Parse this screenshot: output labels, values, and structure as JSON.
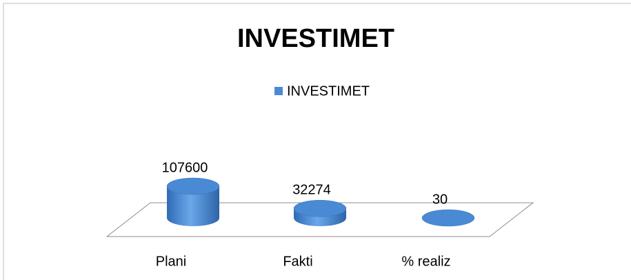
{
  "chart_data": {
    "type": "bar3d",
    "title": "INVESTIMET",
    "categories": [
      "Plani",
      "Fakti",
      "% realiz"
    ],
    "series": [
      {
        "name": "INVESTIMET",
        "color": "#4a8ad4",
        "values": [
          107600,
          32274,
          30
        ]
      }
    ]
  }
}
